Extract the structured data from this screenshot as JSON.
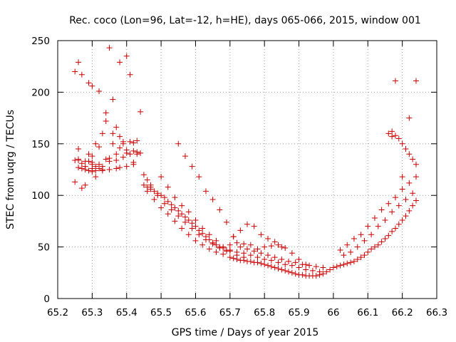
{
  "chart_data": {
    "type": "scatter",
    "title": "Rec. coco (Lon=96, Lat=-12, h=HE), days 065-066, 2015, window 001",
    "xlabel": "GPS time / Days of year 2015",
    "ylabel": "STEC from uqrg / TECUs",
    "xlim": [
      65.2,
      66.3
    ],
    "ylim": [
      0,
      250
    ],
    "xticks": [
      65.2,
      65.3,
      65.4,
      65.5,
      65.6,
      65.7,
      65.8,
      65.9,
      66.0,
      66.1,
      66.2,
      66.3
    ],
    "xtick_labels": [
      "65.2",
      "65.3",
      "65.4",
      "65.5",
      "65.6",
      "65.7",
      "65.8",
      "65.9",
      "66",
      "66.1",
      "66.2",
      "66.3"
    ],
    "yticks": [
      0,
      50,
      100,
      150,
      200,
      250
    ],
    "ytick_labels": [
      "0",
      "50",
      "100",
      "150",
      "200",
      "250"
    ],
    "grid": true,
    "marker": "+",
    "color": "#cc0000",
    "x": [
      65.25,
      65.25,
      65.26,
      65.26,
      65.27,
      65.27,
      65.28,
      65.28,
      65.29,
      65.29,
      65.3,
      65.3,
      65.31,
      65.31,
      65.32,
      65.33,
      65.33,
      65.34,
      65.35,
      65.36,
      65.37,
      65.38,
      65.39,
      65.4,
      65.41,
      65.42,
      65.43,
      65.44,
      65.26,
      65.27,
      65.29,
      65.3,
      65.31,
      65.33,
      65.35,
      65.37,
      65.38,
      65.4,
      65.42,
      65.27,
      65.3,
      65.32,
      65.35,
      65.37,
      65.39,
      65.41,
      65.43,
      65.25,
      65.26,
      65.28,
      65.29,
      65.3,
      65.31,
      65.32,
      65.33,
      65.34,
      65.35,
      65.36,
      65.37,
      65.38,
      65.39,
      65.4,
      65.41,
      65.42,
      65.43,
      65.44,
      65.45,
      65.46,
      65.47,
      65.26,
      65.28,
      65.3,
      65.32,
      65.34,
      65.36,
      65.38,
      65.4,
      65.42,
      65.45,
      65.46,
      65.47,
      65.48,
      65.49,
      65.5,
      65.51,
      65.52,
      65.53,
      65.54,
      65.55,
      65.56,
      65.57,
      65.58,
      65.59,
      65.6,
      65.61,
      65.62,
      65.63,
      65.64,
      65.65,
      65.66,
      65.67,
      65.68,
      65.69,
      65.7,
      65.46,
      65.48,
      65.5,
      65.52,
      65.54,
      65.56,
      65.58,
      65.6,
      65.62,
      65.64,
      65.66,
      65.68,
      65.47,
      65.49,
      65.51,
      65.53,
      65.55,
      65.57,
      65.59,
      65.61,
      65.63,
      65.65,
      65.67,
      65.69,
      65.5,
      65.52,
      65.54,
      65.56,
      65.58,
      65.6,
      65.62,
      65.64,
      65.66,
      65.68,
      65.7,
      65.72,
      65.74,
      65.55,
      65.57,
      65.59,
      65.61,
      65.63,
      65.65,
      65.67,
      65.69,
      65.71,
      65.7,
      65.71,
      65.72,
      65.73,
      65.74,
      65.75,
      65.76,
      65.77,
      65.78,
      65.79,
      65.8,
      65.81,
      65.82,
      65.83,
      65.84,
      65.85,
      65.86,
      65.87,
      65.88,
      65.89,
      65.9,
      65.91,
      65.92,
      65.93,
      65.94,
      65.95,
      65.96,
      65.97,
      65.98,
      65.99,
      65.72,
      65.74,
      65.76,
      65.78,
      65.8,
      65.82,
      65.84,
      65.86,
      65.88,
      65.9,
      65.92,
      65.94,
      65.96,
      65.73,
      65.75,
      65.77,
      65.79,
      65.81,
      65.83,
      65.85,
      65.87,
      65.89,
      65.91,
      65.93,
      65.95,
      65.97,
      65.7,
      65.72,
      65.74,
      65.76,
      65.78,
      65.8,
      65.82,
      65.84,
      65.86,
      65.88,
      65.9,
      65.92,
      65.71,
      65.73,
      65.75,
      65.77,
      65.79,
      65.81,
      65.83,
      65.85,
      66.0,
      66.01,
      66.02,
      66.03,
      66.04,
      66.05,
      66.06,
      66.07,
      66.08,
      66.09,
      66.1,
      66.11,
      66.12,
      66.13,
      66.14,
      66.15,
      66.16,
      66.17,
      66.18,
      66.19,
      66.2,
      66.21,
      66.22,
      66.23,
      66.24,
      66.02,
      66.04,
      66.06,
      66.08,
      66.1,
      66.12,
      66.14,
      66.16,
      66.18,
      66.2,
      66.22,
      66.24,
      66.03,
      66.05,
      66.07,
      66.09,
      66.11,
      66.13,
      66.15,
      66.17,
      66.19,
      66.21,
      66.23,
      66.16,
      66.17,
      66.18,
      66.19,
      66.2,
      66.21,
      66.22,
      66.23,
      66.24,
      66.18,
      66.24,
      66.22,
      66.17,
      66.2
    ],
    "y": [
      220,
      113,
      229,
      145,
      217,
      107,
      125,
      110,
      209,
      140,
      126,
      206,
      150,
      118,
      201,
      128,
      160,
      172,
      243,
      193,
      166,
      229,
      152,
      235,
      217,
      132,
      153,
      181,
      127,
      126,
      124,
      123,
      124,
      124,
      125,
      126,
      127,
      128,
      130,
      131,
      132,
      130,
      133,
      134,
      137,
      140,
      142,
      134,
      134,
      133,
      133,
      130,
      128,
      126,
      125,
      180,
      136,
      160,
      140,
      157,
      150,
      144,
      152,
      143,
      140,
      141,
      120,
      115,
      110,
      135,
      128,
      138,
      147,
      135,
      150,
      146,
      141,
      151,
      110,
      108,
      106,
      104,
      102,
      100,
      98,
      94,
      91,
      88,
      85,
      82,
      79,
      76,
      73,
      70,
      66,
      63,
      60,
      57,
      54,
      52,
      50,
      49,
      47,
      47,
      104,
      96,
      88,
      82,
      75,
      68,
      62,
      56,
      52,
      48,
      45,
      43,
      108,
      100,
      92,
      86,
      80,
      74,
      68,
      62,
      57,
      53,
      49,
      46,
      118,
      108,
      98,
      90,
      84,
      76,
      68,
      62,
      56,
      50,
      46,
      42,
      40,
      150,
      138,
      128,
      118,
      104,
      96,
      86,
      74,
      60,
      40,
      39,
      38,
      37,
      37,
      36,
      36,
      35,
      35,
      34,
      33,
      32,
      31,
      30,
      29,
      28,
      27,
      26,
      25,
      24,
      23,
      23,
      22,
      22,
      22,
      22,
      23,
      24,
      26,
      28,
      45,
      44,
      42,
      40,
      38,
      37,
      35,
      33,
      32,
      30,
      28,
      27,
      26,
      50,
      48,
      46,
      44,
      42,
      40,
      38,
      36,
      35,
      33,
      32,
      31,
      30,
      52,
      54,
      53,
      52,
      48,
      50,
      51,
      52,
      49,
      44,
      38,
      33,
      60,
      66,
      72,
      70,
      62,
      58,
      55,
      50,
      30,
      31,
      32,
      33,
      34,
      35,
      36,
      38,
      40,
      42,
      45,
      48,
      50,
      52,
      55,
      58,
      61,
      65,
      68,
      72,
      76,
      80,
      85,
      90,
      95,
      47,
      52,
      58,
      62,
      70,
      78,
      86,
      92,
      98,
      106,
      112,
      118,
      42,
      45,
      50,
      56,
      62,
      70,
      76,
      84,
      90,
      96,
      102,
      160,
      162,
      158,
      155,
      150,
      145,
      140,
      135,
      130,
      211,
      211,
      175,
      157,
      118
    ]
  }
}
